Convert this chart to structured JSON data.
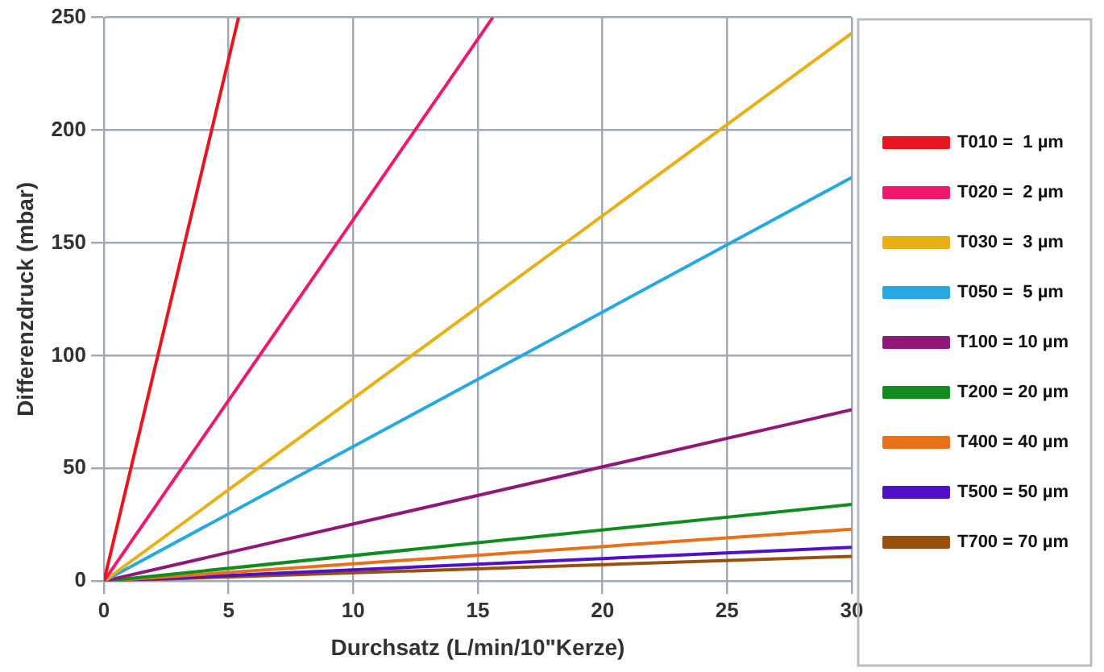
{
  "chart_data": {
    "type": "line",
    "xlabel": "Durchsatz (L/min/10\"Kerze)",
    "ylabel": "Differenzdruck (mbar)",
    "xlim": [
      0,
      30
    ],
    "xticks": [
      0,
      5,
      10,
      15,
      20,
      25,
      30
    ],
    "ylim": [
      0,
      250
    ],
    "yticks": [
      0,
      50,
      100,
      150,
      200,
      250
    ],
    "grid": true,
    "legend": "right",
    "marker": "none",
    "line_style": "solid",
    "series": [
      {
        "name": "T010 =  1 µm",
        "color": "#e8141e",
        "x": [
          0,
          5.4
        ],
        "values": [
          0,
          250
        ]
      },
      {
        "name": "T020 =  2 µm",
        "color": "#f0186e",
        "x": [
          0,
          15.6
        ],
        "values": [
          0,
          250
        ]
      },
      {
        "name": "T030 =  3 µm",
        "color": "#e8b014",
        "x": [
          0,
          30
        ],
        "values": [
          0,
          243
        ]
      },
      {
        "name": "T050 =  5 µm",
        "color": "#28a8e0",
        "x": [
          0,
          30
        ],
        "values": [
          0,
          179
        ]
      },
      {
        "name": "T100 = 10 µm",
        "color": "#901878",
        "x": [
          0,
          30
        ],
        "values": [
          0,
          76
        ]
      },
      {
        "name": "T200 = 20 µm",
        "color": "#108c20",
        "x": [
          0,
          30
        ],
        "values": [
          0,
          34
        ]
      },
      {
        "name": "T400 = 40 µm",
        "color": "#e87018",
        "x": [
          0,
          30
        ],
        "values": [
          0,
          23
        ]
      },
      {
        "name": "T500 = 50 µm",
        "color": "#5010c8",
        "x": [
          0,
          30
        ],
        "values": [
          0,
          15
        ]
      },
      {
        "name": "T700 = 70 µm",
        "color": "#985010",
        "x": [
          0,
          30
        ],
        "values": [
          0,
          11
        ]
      }
    ]
  }
}
